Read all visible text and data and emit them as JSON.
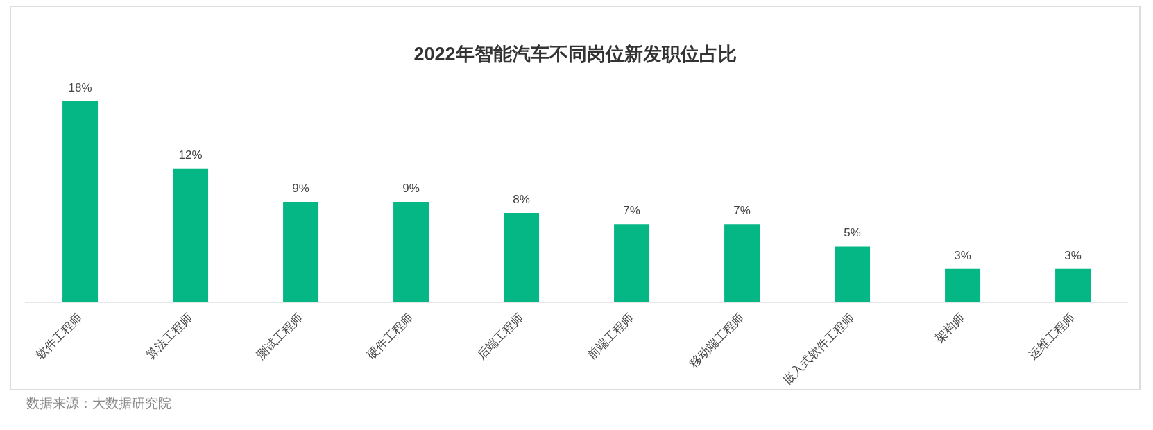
{
  "chart_data": {
    "type": "bar",
    "title": "2022年智能汽车不同岗位新发职位占比",
    "categories": [
      "软件工程师",
      "算法工程师",
      "测试工程师",
      "硬件工程师",
      "后端工程师",
      "前端工程师",
      "移动端工程师",
      "嵌入式软件工程师",
      "架构师",
      "运维工程师"
    ],
    "values": [
      18,
      12,
      9,
      9,
      8,
      7,
      7,
      5,
      3,
      3
    ],
    "value_labels": [
      "18%",
      "12%",
      "9%",
      "9%",
      "8%",
      "7%",
      "7%",
      "5%",
      "3%",
      "3%"
    ],
    "color": "#06b786",
    "grid": false,
    "legend": false,
    "annotations": [
      "数据来源：大数据研究院"
    ]
  }
}
